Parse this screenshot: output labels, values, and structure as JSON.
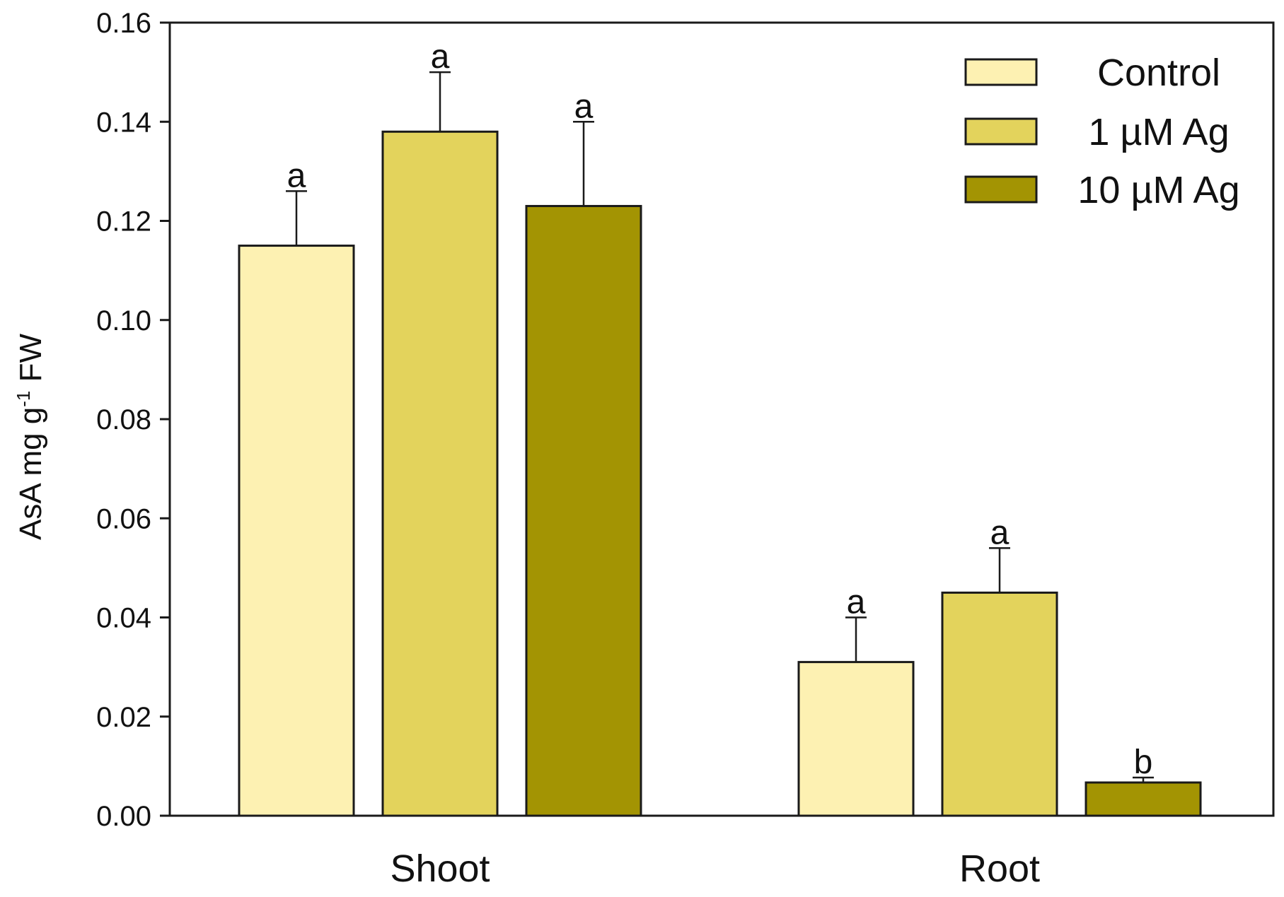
{
  "chart_data": {
    "type": "bar",
    "ylabel": {
      "prefix": "AsA mg g",
      "superscript": "-1",
      "suffix": " FW"
    },
    "ylim": [
      0,
      0.16
    ],
    "yticks": [
      "0.00",
      "0.02",
      "0.04",
      "0.06",
      "0.08",
      "0.10",
      "0.12",
      "0.14",
      "0.16"
    ],
    "grid": false,
    "legend_position": "top-right",
    "categories": [
      "Shoot",
      "Root"
    ],
    "series": [
      {
        "name": "Control",
        "color": "#fdf1b2",
        "values": [
          0.115,
          0.031
        ],
        "errors": [
          0.011,
          0.009
        ],
        "significance": [
          "a",
          "a"
        ]
      },
      {
        "name": "1 µM Ag",
        "color": "#e3d35c",
        "values": [
          0.138,
          0.045
        ],
        "errors": [
          0.012,
          0.009
        ],
        "significance": [
          "a",
          "a"
        ]
      },
      {
        "name": "10 µM Ag",
        "color": "#a39403",
        "values": [
          0.123,
          0.0067
        ],
        "errors": [
          0.017,
          0.001
        ],
        "significance": [
          "a",
          "b"
        ]
      }
    ]
  }
}
